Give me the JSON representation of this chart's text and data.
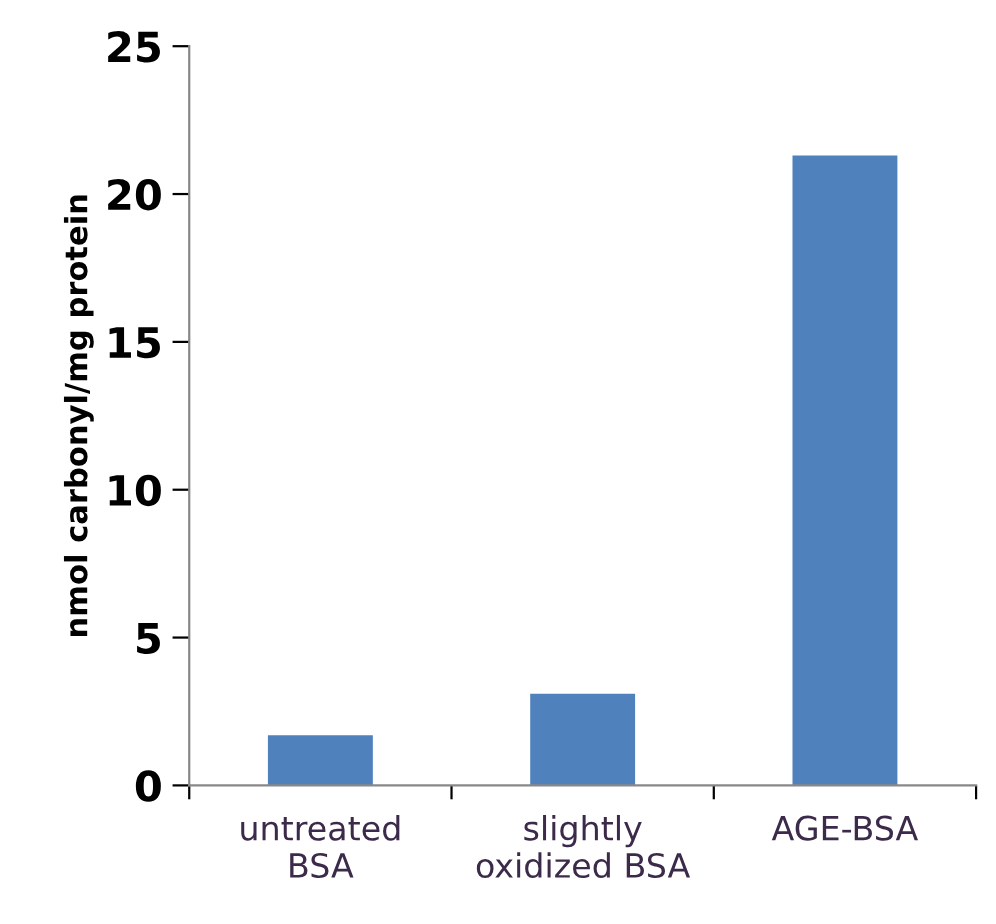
{
  "chart_data": {
    "type": "bar",
    "categories": [
      "untreated\nBSA",
      "slightly\noxidized BSA",
      "AGE-BSA"
    ],
    "values": [
      1.7,
      3.1,
      21.3
    ],
    "color": "#4f81bd",
    "ylabel": "nmol carbonyl/mg protein",
    "ylim": [
      0,
      25
    ],
    "yticks": [
      0,
      5,
      10,
      15,
      20,
      25
    ],
    "grid": false,
    "legend": false
  }
}
